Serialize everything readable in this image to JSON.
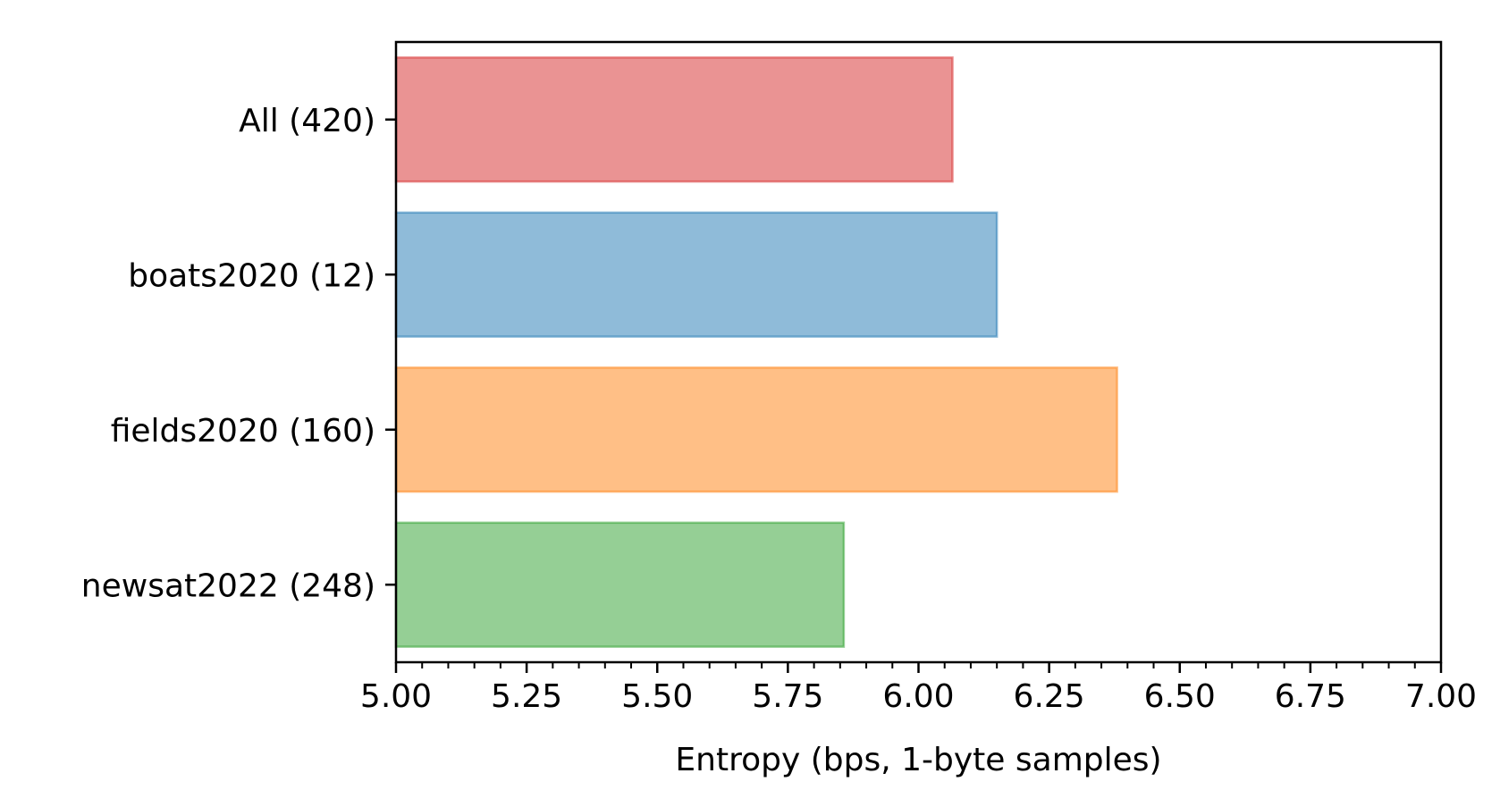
{
  "chart_data": {
    "type": "bar",
    "orientation": "horizontal",
    "title": "",
    "xlabel": "Entropy (bps, 1-byte samples)",
    "ylabel": "",
    "xlim": [
      5.0,
      7.0
    ],
    "x_ticks": [
      5.0,
      5.25,
      5.5,
      5.75,
      6.0,
      6.25,
      6.5,
      6.75,
      7.0
    ],
    "x_tick_labels": [
      "5.00",
      "5.25",
      "5.50",
      "5.75",
      "6.00",
      "6.25",
      "6.50",
      "6.75",
      "7.00"
    ],
    "x_minor_step": 0.05,
    "categories": [
      "All (420)",
      "boats2020 (12)",
      "fields2020 (160)",
      "newsat2022 (248)"
    ],
    "values": [
      6.065,
      6.15,
      6.38,
      5.857
    ],
    "colors": [
      "#d62728",
      "#1f77b4",
      "#ff7f0e",
      "#2ca02c"
    ],
    "bar_opacity": 0.5,
    "grid": false,
    "legend": "none"
  }
}
